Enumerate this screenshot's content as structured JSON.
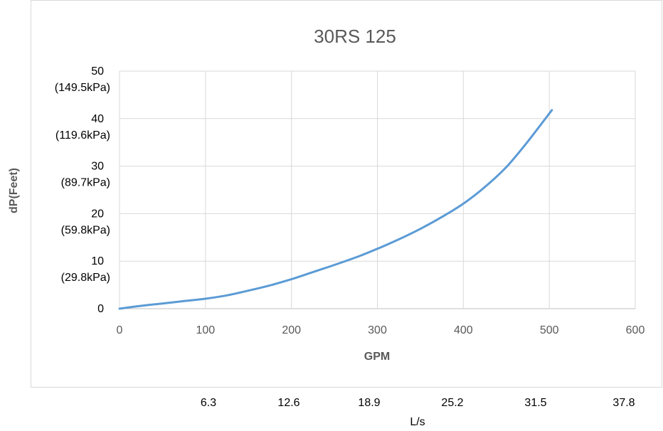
{
  "chart_data": {
    "type": "line",
    "title": "30RS 125",
    "xlabel": "GPM",
    "ylabel": "dP(Feet)",
    "xlim": [
      0,
      600
    ],
    "ylim": [
      0,
      50
    ],
    "x_ticks": [
      "0",
      "100",
      "200",
      "300",
      "400",
      "500",
      "600"
    ],
    "y_ticks": [
      {
        "value": 0,
        "label": "0",
        "sublabel": ""
      },
      {
        "value": 10,
        "label": "10",
        "sublabel": "(29.8kPa)"
      },
      {
        "value": 20,
        "label": "20",
        "sublabel": "(59.8kPa)"
      },
      {
        "value": 30,
        "label": "30",
        "sublabel": "(89.7kPa)"
      },
      {
        "value": 40,
        "label": "40",
        "sublabel": "(119.6kPa)"
      },
      {
        "value": 50,
        "label": "50",
        "sublabel": "(149.5kPa)"
      }
    ],
    "grid": true,
    "series": [
      {
        "color": "#5b9bd5",
        "x": [
          0,
          25,
          50,
          75,
          100,
          125,
          150,
          175,
          200,
          225,
          250,
          275,
          300,
          325,
          350,
          375,
          400,
          425,
          450,
          475,
          503
        ],
        "y": [
          0,
          0.6,
          1.1,
          1.6,
          2.1,
          2.8,
          3.8,
          4.9,
          6.2,
          7.7,
          9.2,
          10.8,
          12.6,
          14.6,
          16.8,
          19.3,
          22.1,
          25.6,
          29.8,
          35.2,
          41.8
        ]
      }
    ],
    "secondary_axis": {
      "title": "L/s",
      "ticks": [
        "6.3",
        "12.6",
        "18.9",
        "25.2",
        "31.5",
        "37.8"
      ]
    }
  }
}
